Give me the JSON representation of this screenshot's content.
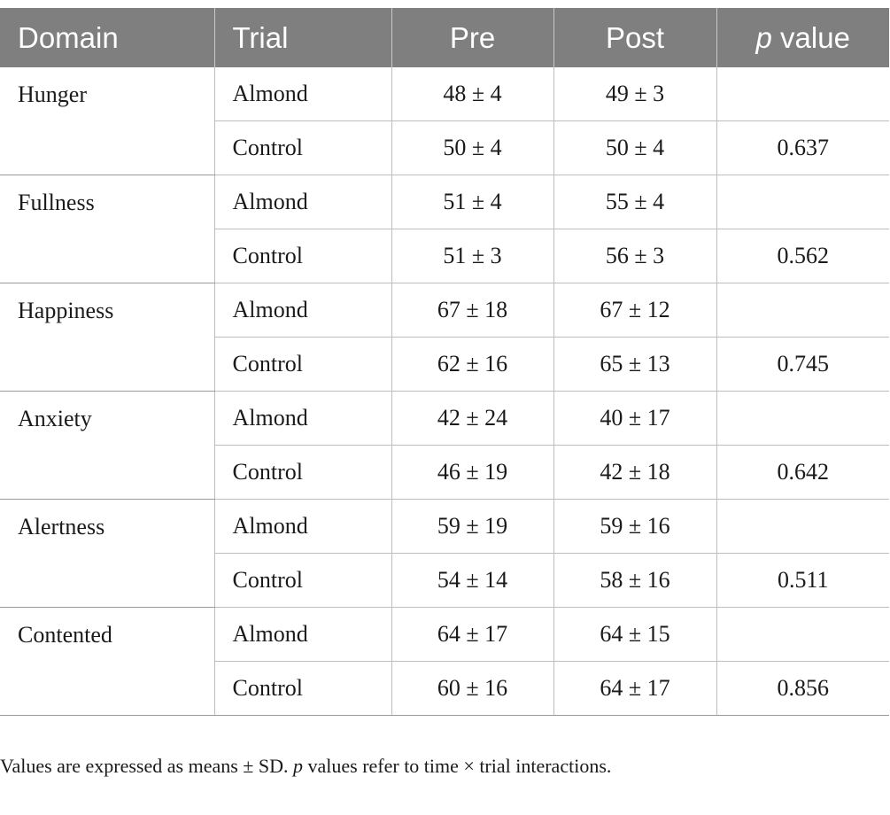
{
  "table": {
    "headers": {
      "domain": "Domain",
      "trial": "Trial",
      "pre": "Pre",
      "post": "Post",
      "p_italic": "p",
      "p_rest": " value"
    },
    "groups": [
      {
        "domain": "Hunger",
        "rows": [
          {
            "trial": "Almond",
            "pre": "48 ± 4",
            "post": "49 ± 3",
            "p": ""
          },
          {
            "trial": "Control",
            "pre": "50 ± 4",
            "post": "50 ± 4",
            "p": "0.637"
          }
        ]
      },
      {
        "domain": "Fullness",
        "rows": [
          {
            "trial": "Almond",
            "pre": "51 ± 4",
            "post": "55 ± 4",
            "p": ""
          },
          {
            "trial": "Control",
            "pre": "51 ± 3",
            "post": "56 ± 3",
            "p": "0.562"
          }
        ]
      },
      {
        "domain": "Happiness",
        "rows": [
          {
            "trial": "Almond",
            "pre": "67 ± 18",
            "post": "67 ± 12",
            "p": ""
          },
          {
            "trial": "Control",
            "pre": "62 ± 16",
            "post": "65 ± 13",
            "p": "0.745"
          }
        ]
      },
      {
        "domain": "Anxiety",
        "rows": [
          {
            "trial": "Almond",
            "pre": "42 ± 24",
            "post": "40 ± 17",
            "p": ""
          },
          {
            "trial": "Control",
            "pre": "46 ± 19",
            "post": "42 ± 18",
            "p": "0.642"
          }
        ]
      },
      {
        "domain": "Alertness",
        "rows": [
          {
            "trial": "Almond",
            "pre": "59 ± 19",
            "post": "59 ± 16",
            "p": ""
          },
          {
            "trial": "Control",
            "pre": "54 ± 14",
            "post": "58 ± 16",
            "p": "0.511"
          }
        ]
      },
      {
        "domain": "Contented",
        "rows": [
          {
            "trial": "Almond",
            "pre": "64 ± 17",
            "post": "64 ± 15",
            "p": ""
          },
          {
            "trial": "Control",
            "pre": "60 ± 16",
            "post": "64 ± 17",
            "p": "0.856"
          }
        ]
      }
    ]
  },
  "footnote": {
    "part1": "Values are expressed as means ± SD. ",
    "p_italic": "p",
    "part2": " values refer to time × trial interactions."
  },
  "colors": {
    "header_bg": "#7f7f7f",
    "header_text": "#ffffff",
    "grid_line": "#bdbdbd"
  }
}
